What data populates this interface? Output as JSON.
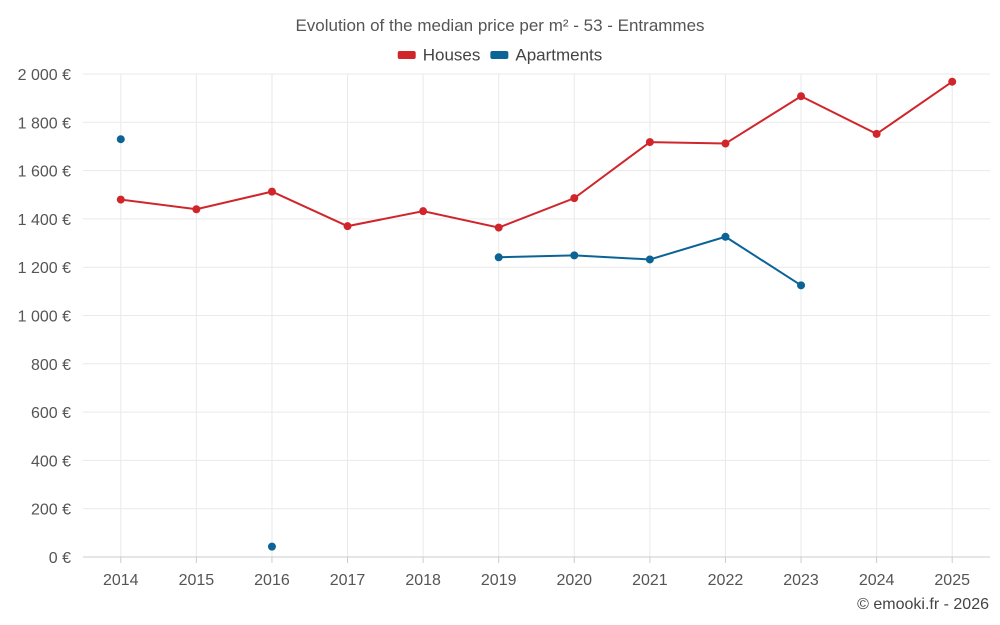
{
  "chart_data": {
    "type": "line",
    "title": "Evolution of the median price per m² - 53 - Entrammes",
    "xlabel": "",
    "ylabel": "",
    "x": [
      2014,
      2015,
      2016,
      2017,
      2018,
      2019,
      2020,
      2021,
      2022,
      2023,
      2024,
      2025
    ],
    "x_tick_labels": [
      "2014",
      "2015",
      "2016",
      "2017",
      "2018",
      "2019",
      "2020",
      "2021",
      "2022",
      "2023",
      "2024",
      "2025"
    ],
    "ylim": [
      0,
      2000
    ],
    "y_ticks": [
      0,
      200,
      400,
      600,
      800,
      1000,
      1200,
      1400,
      1600,
      1800,
      2000
    ],
    "y_tick_labels": [
      "0 €",
      "200 €",
      "400 €",
      "600 €",
      "800 €",
      "1 000 €",
      "1 200 €",
      "1 400 €",
      "1 600 €",
      "1 800 €",
      "2 000 €"
    ],
    "grid": true,
    "legend_position": "top-center",
    "series": [
      {
        "name": "Houses",
        "color": "#d0262b",
        "values": [
          1480,
          1440,
          1513,
          1370,
          1432,
          1364,
          1486,
          1718,
          1712,
          1908,
          1752,
          1968
        ]
      },
      {
        "name": "Apartments",
        "color": "#0b6396",
        "values": [
          1730,
          null,
          43,
          null,
          null,
          1241,
          1249,
          1232,
          1326,
          1125,
          null,
          null
        ]
      }
    ]
  },
  "credit": "© emooki.fr - 2026"
}
